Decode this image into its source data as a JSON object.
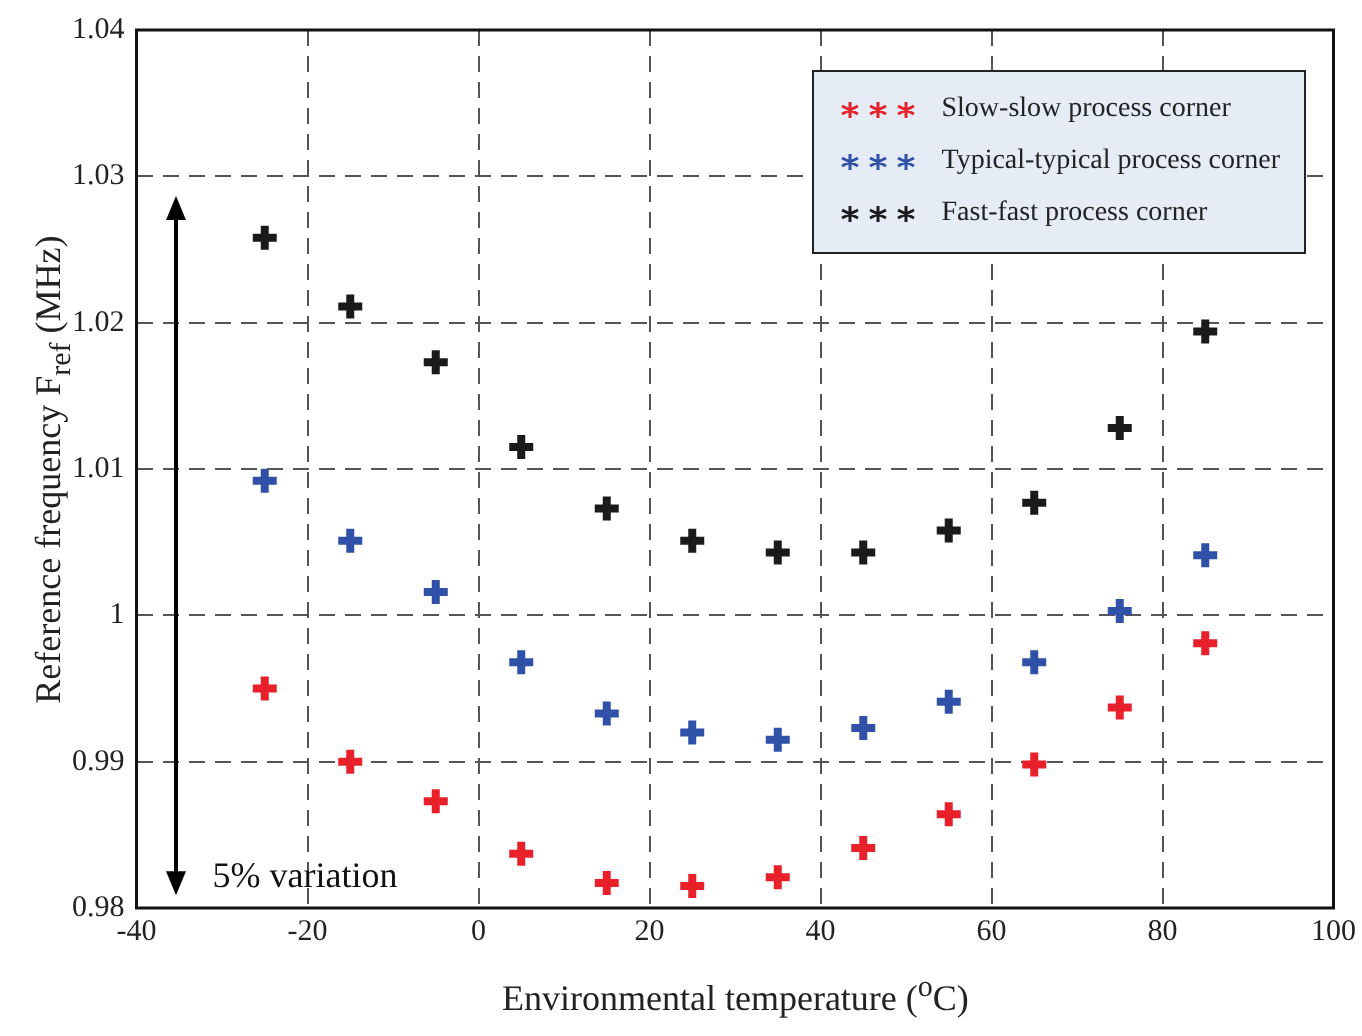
{
  "chart_data": {
    "type": "scatter",
    "xlabel": "Environmental temperature ($^{o}$C)",
    "ylabel": "Reference frequency F$_{ref}$ (MHz)",
    "x": [
      -25,
      -15,
      -5,
      5,
      15,
      25,
      35,
      45,
      55,
      65,
      75,
      85
    ],
    "series": [
      {
        "name": "Slow-slow process corner",
        "color": "#e8202a",
        "values": [
          0.995,
          0.99,
          0.9873,
          0.9837,
          0.9817,
          0.9815,
          0.9821,
          0.9841,
          0.9864,
          0.9898,
          0.9937,
          0.9981
        ]
      },
      {
        "name": "Typical-typical process corner",
        "color": "#2f52a8",
        "values": [
          1.0092,
          1.0051,
          1.0016,
          0.9968,
          0.9933,
          0.992,
          0.9915,
          0.9923,
          0.9941,
          0.9968,
          1.0003,
          1.0041
        ]
      },
      {
        "name": "Fast-fast process corner",
        "color": "#1a1a1a",
        "values": [
          1.0258,
          1.0211,
          1.0173,
          1.0115,
          1.0073,
          1.0051,
          1.0043,
          1.0043,
          1.0058,
          1.0077,
          1.0128,
          1.0194
        ]
      }
    ],
    "xlim": [
      -40,
      100
    ],
    "xticks": [
      -40,
      -20,
      0,
      20,
      40,
      60,
      80,
      100
    ],
    "ylim": [
      0.98,
      1.04
    ],
    "yticks": [
      0.98,
      0.99,
      1,
      1.01,
      1.02,
      1.03,
      1.04
    ],
    "grid": true,
    "legend": "top right",
    "marker": "cross",
    "annotations": [
      "5% variation"
    ]
  }
}
